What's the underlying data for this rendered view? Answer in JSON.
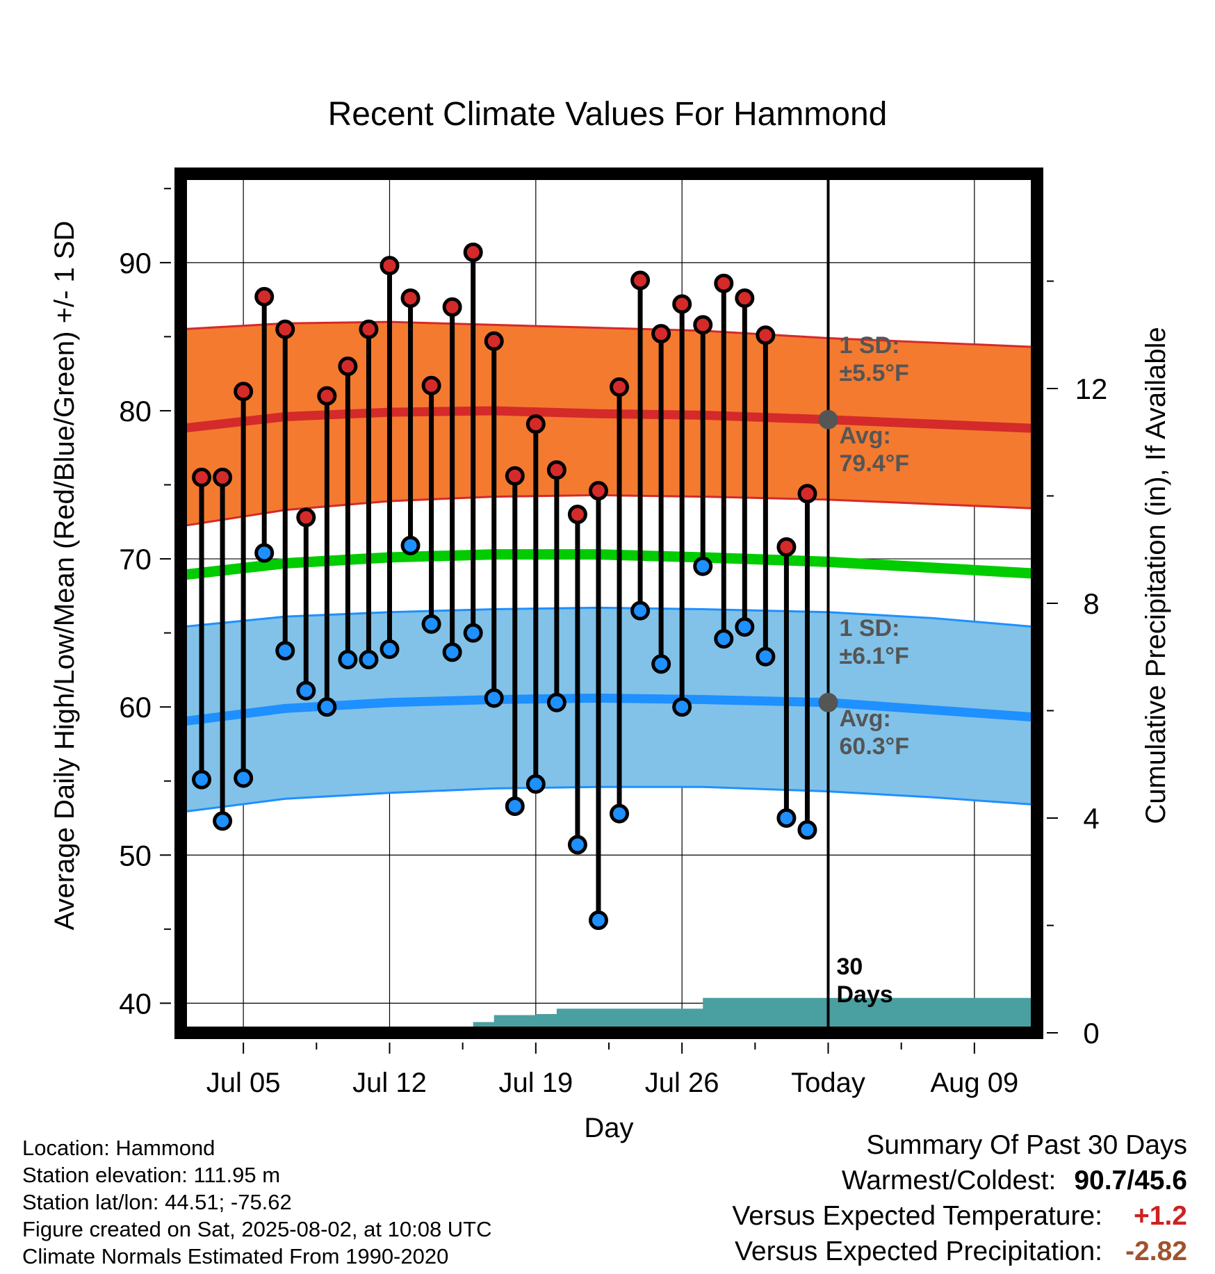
{
  "chart_data": {
    "type": "line",
    "title": "Recent Climate Values For Hammond",
    "xlabel": "Day",
    "ylabel_left": "Average Daily High/Low/Mean (Red/Blue/Green) +/- 1 SD",
    "ylabel_right": "Cumulative Precipitation (in), If Available",
    "ylim_left": [
      38,
      96
    ],
    "yticks_left": [
      40,
      50,
      60,
      70,
      80,
      90
    ],
    "ylim_right": [
      0,
      16
    ],
    "yticks_right": [
      0,
      4,
      8,
      12
    ],
    "xlim": [
      "2025-07-02",
      "2025-08-12"
    ],
    "xticks": [
      {
        "date": "2025-07-05",
        "label": "Jul 05"
      },
      {
        "date": "2025-07-12",
        "label": "Jul 12"
      },
      {
        "date": "2025-07-19",
        "label": "Jul 19"
      },
      {
        "date": "2025-07-26",
        "label": "Jul 26"
      },
      {
        "date": "2025-08-02",
        "label": "Today"
      },
      {
        "date": "2025-08-09",
        "label": "Aug 09"
      }
    ],
    "grid": true,
    "daily_observations": {
      "dates": [
        "2025-07-03",
        "2025-07-04",
        "2025-07-05",
        "2025-07-06",
        "2025-07-07",
        "2025-07-08",
        "2025-07-09",
        "2025-07-10",
        "2025-07-11",
        "2025-07-12",
        "2025-07-13",
        "2025-07-14",
        "2025-07-15",
        "2025-07-16",
        "2025-07-17",
        "2025-07-18",
        "2025-07-19",
        "2025-07-20",
        "2025-07-21",
        "2025-07-22",
        "2025-07-23",
        "2025-07-24",
        "2025-07-25",
        "2025-07-26",
        "2025-07-27",
        "2025-07-28",
        "2025-07-29",
        "2025-07-30",
        "2025-07-31",
        "2025-08-01"
      ],
      "high": [
        75.5,
        75.5,
        81.3,
        87.7,
        85.5,
        72.8,
        81.0,
        83.0,
        85.5,
        89.8,
        87.6,
        81.7,
        87.0,
        90.7,
        84.7,
        75.6,
        79.1,
        76.0,
        73.0,
        74.6,
        81.6,
        88.8,
        85.2,
        87.2,
        85.8,
        88.6,
        87.6,
        85.1,
        70.8,
        74.4
      ],
      "low": [
        55.1,
        52.3,
        55.2,
        70.4,
        63.8,
        61.1,
        60.0,
        63.2,
        63.2,
        63.9,
        70.9,
        65.6,
        63.7,
        65.0,
        60.6,
        53.3,
        54.8,
        60.3,
        50.7,
        45.6,
        52.8,
        66.5,
        62.9,
        60.0,
        69.5,
        64.6,
        65.4,
        63.4,
        52.5,
        51.7
      ]
    },
    "normals": {
      "dates": [
        "2025-07-02",
        "2025-07-07",
        "2025-07-12",
        "2025-07-17",
        "2025-07-22",
        "2025-07-27",
        "2025-08-02",
        "2025-08-07",
        "2025-08-12"
      ],
      "high_avg": [
        78.8,
        79.6,
        79.9,
        80.0,
        79.8,
        79.7,
        79.4,
        79.1,
        78.8
      ],
      "high_upper": [
        85.5,
        85.9,
        86.0,
        85.8,
        85.6,
        85.4,
        84.9,
        84.6,
        84.3
      ],
      "high_lower": [
        72.2,
        73.3,
        73.9,
        74.2,
        74.3,
        74.2,
        74.0,
        73.7,
        73.4
      ],
      "low_avg": [
        59.0,
        59.9,
        60.3,
        60.5,
        60.6,
        60.5,
        60.3,
        59.8,
        59.3
      ],
      "low_upper": [
        65.4,
        66.1,
        66.4,
        66.6,
        66.7,
        66.6,
        66.4,
        66.0,
        65.4
      ],
      "low_lower": [
        52.9,
        53.8,
        54.2,
        54.5,
        54.6,
        54.6,
        54.3,
        53.9,
        53.4
      ],
      "mean": [
        68.9,
        69.7,
        70.1,
        70.3,
        70.3,
        70.1,
        69.8,
        69.4,
        69.0
      ]
    },
    "precipitation": {
      "dates": [
        "2025-07-03",
        "2025-07-06",
        "2025-07-15",
        "2025-07-16",
        "2025-07-17",
        "2025-07-19",
        "2025-07-20",
        "2025-07-26",
        "2025-07-27",
        "2025-08-12"
      ],
      "cumulative": [
        0.08,
        0.1,
        0.1,
        0.2,
        0.33,
        0.35,
        0.45,
        0.45,
        0.65,
        0.65
      ]
    },
    "annotations": {
      "high_sd_label": "1 SD:",
      "high_sd_value": "±5.5°F",
      "high_avg_label": "Avg:",
      "high_avg_value": "79.4°F",
      "low_sd_label": "1 SD:",
      "low_sd_value": "±6.1°F",
      "low_avg_label": "Avg:",
      "low_avg_value": "60.3°F",
      "window_label_1": "30",
      "window_label_2": "Days"
    },
    "colors": {
      "high_band": "#f47a30",
      "high_line": "#d42a2a",
      "low_band": "#82c2e8",
      "low_line": "#1e90ff",
      "mean_line": "#00cc00",
      "precip": "#4a9fa0",
      "high_marker": "#d42a2a",
      "low_marker": "#1e90ff",
      "annotation": "#555555"
    }
  },
  "info": {
    "location": "Location: Hammond",
    "elevation": "Station elevation: 111.95 m",
    "latlon": "Station lat/lon: 44.51; -75.62",
    "created": "Figure created on Sat, 2025-08-02, at 10:08 UTC",
    "normals": "Climate Normals Estimated From 1990-2020"
  },
  "summary": {
    "title": "Summary Of Past 30 Days",
    "warmest_label": "Warmest/Coldest:",
    "warmest_value": "90.7/45.6",
    "temp_label": "Versus Expected Temperature:",
    "temp_value": "+1.2",
    "temp_color": "#cc2222",
    "precip_label": "Versus Expected Precipitation:",
    "precip_value": "-2.82",
    "precip_color": "#a0522d"
  }
}
